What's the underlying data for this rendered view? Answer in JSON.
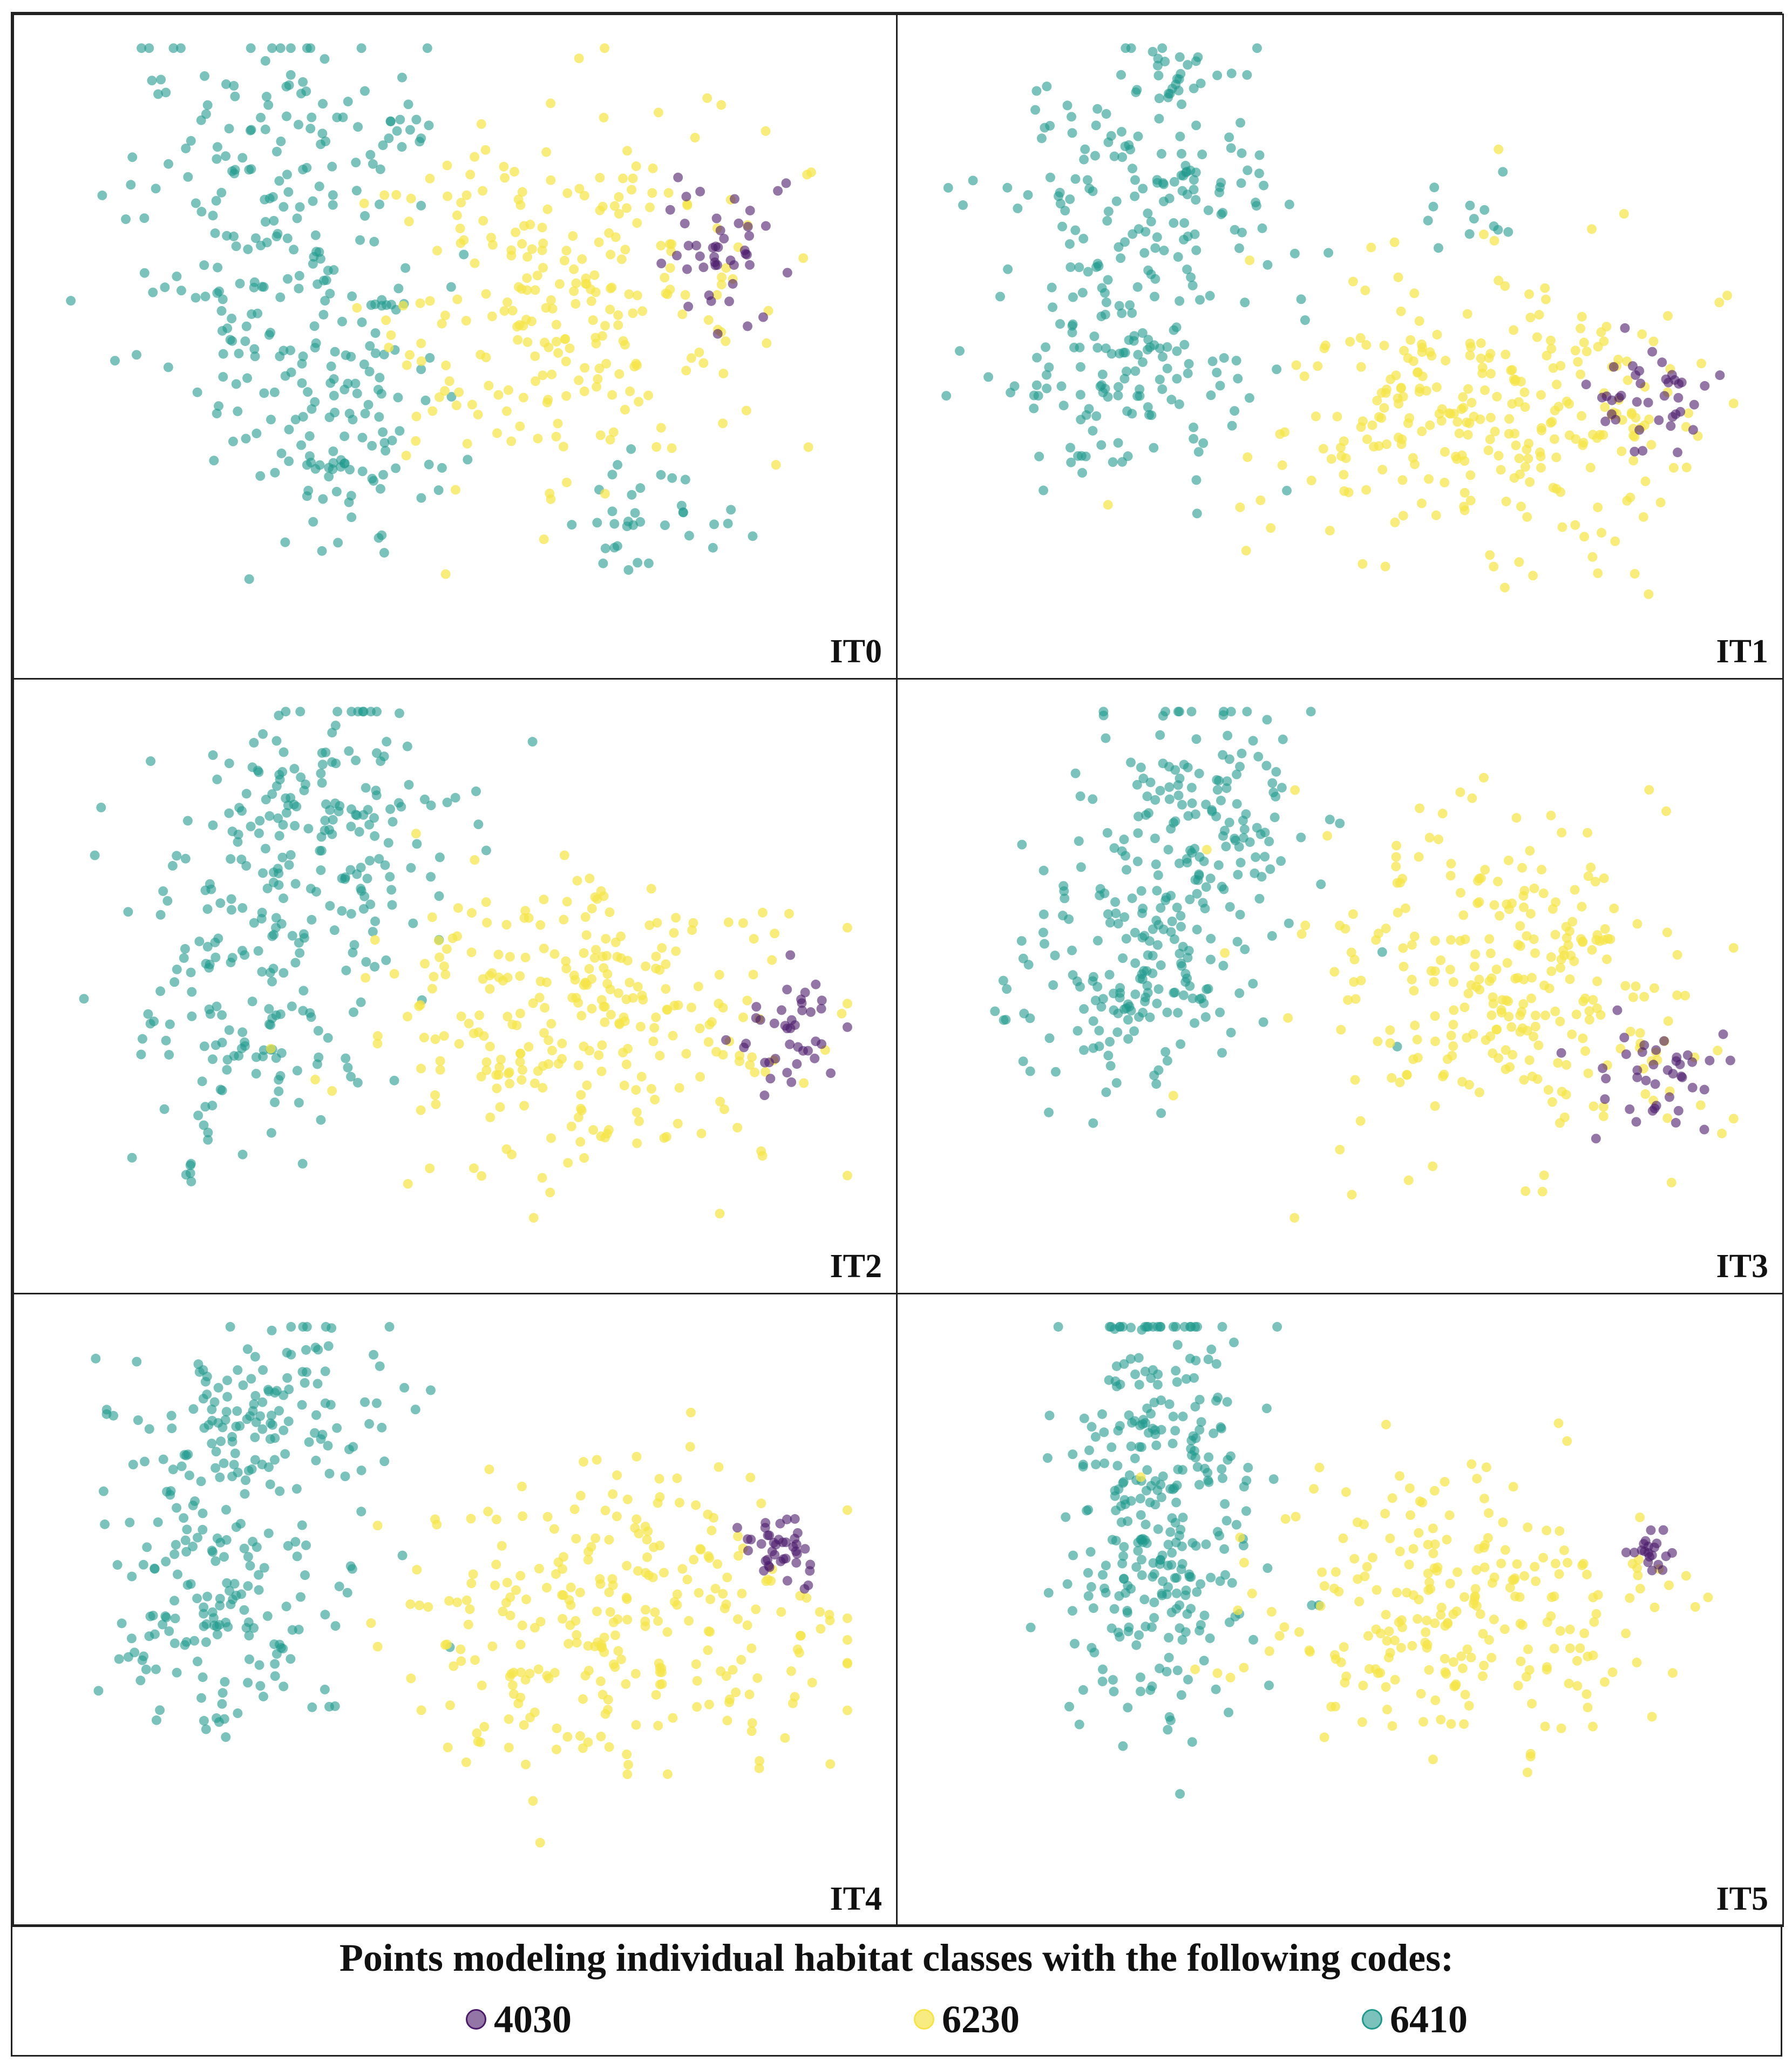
{
  "chart_data": [
    {
      "type": "scatter",
      "panel_label": "IT0",
      "series": [
        {
          "name": "4030",
          "color": "#4b1a6b",
          "clusters": [
            {
              "cx": 0.82,
              "cy": 0.65,
              "sx": 0.035,
              "sy": 0.07,
              "n": 45
            }
          ]
        },
        {
          "name": "6230",
          "color": "#f5e44a",
          "clusters": [
            {
              "cx": 0.63,
              "cy": 0.55,
              "sx": 0.12,
              "sy": 0.16,
              "n": 260
            }
          ]
        },
        {
          "name": "6410",
          "color": "#21998d",
          "clusters": [
            {
              "cx": 0.25,
              "cy": 0.7,
              "sx": 0.08,
              "sy": 0.18,
              "n": 180
            },
            {
              "cx": 0.42,
              "cy": 0.84,
              "sx": 0.04,
              "sy": 0.04,
              "n": 20
            },
            {
              "cx": 0.37,
              "cy": 0.34,
              "sx": 0.07,
              "sy": 0.12,
              "n": 120
            },
            {
              "cx": 0.74,
              "cy": 0.18,
              "sx": 0.06,
              "sy": 0.05,
              "n": 35
            }
          ]
        }
      ]
    },
    {
      "type": "scatter",
      "panel_label": "IT1",
      "series": [
        {
          "name": "4030",
          "color": "#4b1a6b",
          "clusters": [
            {
              "cx": 0.88,
              "cy": 0.37,
              "sx": 0.04,
              "sy": 0.04,
              "n": 40
            }
          ]
        },
        {
          "name": "6230",
          "color": "#f5e44a",
          "clusters": [
            {
              "cx": 0.68,
              "cy": 0.35,
              "sx": 0.14,
              "sy": 0.13,
              "n": 290
            }
          ]
        },
        {
          "name": "6410",
          "color": "#21998d",
          "clusters": [
            {
              "cx": 0.25,
              "cy": 0.7,
              "sx": 0.09,
              "sy": 0.12,
              "n": 160
            },
            {
              "cx": 0.23,
              "cy": 0.4,
              "sx": 0.07,
              "sy": 0.09,
              "n": 120
            },
            {
              "cx": 0.3,
              "cy": 0.93,
              "sx": 0.03,
              "sy": 0.02,
              "n": 20
            },
            {
              "cx": 0.65,
              "cy": 0.7,
              "sx": 0.04,
              "sy": 0.03,
              "n": 12
            }
          ]
        }
      ]
    },
    {
      "type": "scatter",
      "panel_label": "IT2",
      "series": [
        {
          "name": "4030",
          "color": "#4b1a6b",
          "clusters": [
            {
              "cx": 0.91,
              "cy": 0.38,
              "sx": 0.03,
              "sy": 0.06,
              "n": 40
            }
          ]
        },
        {
          "name": "6230",
          "color": "#f5e44a",
          "clusters": [
            {
              "cx": 0.66,
              "cy": 0.4,
              "sx": 0.13,
              "sy": 0.15,
              "n": 280
            }
          ]
        },
        {
          "name": "6410",
          "color": "#21998d",
          "clusters": [
            {
              "cx": 0.35,
              "cy": 0.78,
              "sx": 0.08,
              "sy": 0.13,
              "n": 160
            },
            {
              "cx": 0.24,
              "cy": 0.44,
              "sx": 0.07,
              "sy": 0.16,
              "n": 150
            }
          ]
        }
      ]
    },
    {
      "type": "scatter",
      "panel_label": "IT3",
      "series": [
        {
          "name": "4030",
          "color": "#4b1a6b",
          "clusters": [
            {
              "cx": 0.88,
              "cy": 0.28,
              "sx": 0.04,
              "sy": 0.05,
              "n": 40
            }
          ]
        },
        {
          "name": "6230",
          "color": "#f5e44a",
          "clusters": [
            {
              "cx": 0.71,
              "cy": 0.46,
              "sx": 0.12,
              "sy": 0.16,
              "n": 280
            }
          ]
        },
        {
          "name": "6410",
          "color": "#21998d",
          "clusters": [
            {
              "cx": 0.33,
              "cy": 0.8,
              "sx": 0.07,
              "sy": 0.12,
              "n": 140
            },
            {
              "cx": 0.25,
              "cy": 0.48,
              "sx": 0.09,
              "sy": 0.12,
              "n": 170
            }
          ]
        }
      ]
    },
    {
      "type": "scatter",
      "panel_label": "IT4",
      "series": [
        {
          "name": "4030",
          "color": "#4b1a6b",
          "clusters": [
            {
              "cx": 0.9,
              "cy": 0.57,
              "sx": 0.02,
              "sy": 0.03,
              "n": 40
            }
          ]
        },
        {
          "name": "6230",
          "color": "#f5e44a",
          "clusters": [
            {
              "cx": 0.69,
              "cy": 0.45,
              "sx": 0.12,
              "sy": 0.14,
              "n": 280
            }
          ]
        },
        {
          "name": "6410",
          "color": "#21998d",
          "clusters": [
            {
              "cx": 0.25,
              "cy": 0.8,
              "sx": 0.08,
              "sy": 0.1,
              "n": 150
            },
            {
              "cx": 0.22,
              "cy": 0.45,
              "sx": 0.07,
              "sy": 0.11,
              "n": 150
            }
          ]
        }
      ]
    },
    {
      "type": "scatter",
      "panel_label": "IT5",
      "series": [
        {
          "name": "4030",
          "color": "#4b1a6b",
          "clusters": [
            {
              "cx": 0.88,
              "cy": 0.57,
              "sx": 0.015,
              "sy": 0.025,
              "n": 20
            }
          ]
        },
        {
          "name": "6230",
          "color": "#f5e44a",
          "clusters": [
            {
              "cx": 0.63,
              "cy": 0.47,
              "sx": 0.12,
              "sy": 0.13,
              "n": 250
            }
          ]
        },
        {
          "name": "6410",
          "color": "#21998d",
          "clusters": [
            {
              "cx": 0.28,
              "cy": 0.65,
              "sx": 0.06,
              "sy": 0.2,
              "n": 320
            }
          ]
        }
      ]
    }
  ],
  "legend": {
    "title": "Points modeling individual habitat classes with the following codes:",
    "items": [
      {
        "code": "4030",
        "color": "#4b1a6b"
      },
      {
        "code": "6230",
        "color": "#f5e44a"
      },
      {
        "code": "6410",
        "color": "#21998d"
      }
    ]
  }
}
